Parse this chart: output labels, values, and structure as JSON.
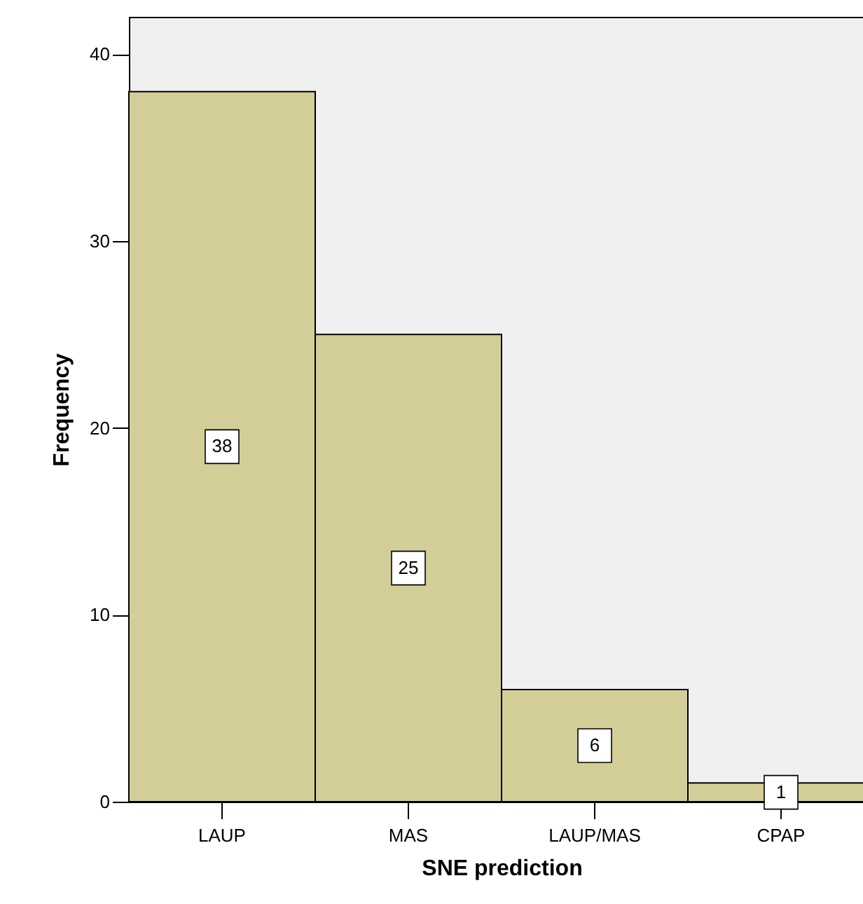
{
  "chart_data": {
    "type": "bar",
    "xlabel": "SNE prediction",
    "ylabel": "Frequency",
    "categories": [
      "LAUP",
      "MAS",
      "LAUP/MAS",
      "CPAP"
    ],
    "values": [
      38,
      25,
      6,
      1
    ],
    "color": "#d3ce97",
    "ylim": [
      0,
      42
    ],
    "yticks": [
      0,
      10,
      20,
      30,
      40
    ],
    "grid": false,
    "data_labels": true
  }
}
